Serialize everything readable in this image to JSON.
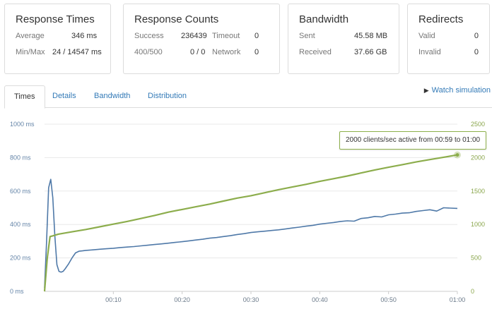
{
  "cards": {
    "response_times": {
      "title": "Response Times",
      "rows": [
        {
          "label": "Average",
          "value": "346 ms"
        },
        {
          "label": "Min/Max",
          "value": "24 / 14547 ms"
        }
      ]
    },
    "response_counts": {
      "title": "Response Counts",
      "rows": [
        {
          "label": "Success",
          "value": "236439",
          "label2": "Timeout",
          "value2": "0"
        },
        {
          "label": "400/500",
          "value": "0 / 0",
          "label2": "Network",
          "value2": "0"
        }
      ]
    },
    "bandwidth": {
      "title": "Bandwidth",
      "rows": [
        {
          "label": "Sent",
          "value": "45.58 MB"
        },
        {
          "label": "Received",
          "value": "37.66 GB"
        }
      ]
    },
    "redirects": {
      "title": "Redirects",
      "rows": [
        {
          "label": "Valid",
          "value": "0"
        },
        {
          "label": "Invalid",
          "value": "0"
        }
      ]
    }
  },
  "tabs": [
    {
      "label": "Times",
      "active": true
    },
    {
      "label": "Details",
      "active": false
    },
    {
      "label": "Bandwidth",
      "active": false
    },
    {
      "label": "Distribution",
      "active": false
    }
  ],
  "watch_label": "Watch simulation",
  "tooltip": "2000 clients/sec active from 00:59 to 01:00",
  "colors": {
    "response_time_line": "#4f79a8",
    "clients_line": "#8cad4c",
    "grid": "#e8e8e8",
    "link": "#337ab7"
  },
  "chart_data": {
    "type": "line",
    "x_unit": "seconds",
    "xlim": [
      0,
      60
    ],
    "x_ticks": [
      "00:10",
      "00:20",
      "00:30",
      "00:40",
      "00:50",
      "01:00"
    ],
    "y_left": {
      "ylim": [
        0,
        1000
      ],
      "ticks": [
        "0 ms",
        "200 ms",
        "400 ms",
        "600 ms",
        "800 ms",
        "1000 ms"
      ]
    },
    "y_right": {
      "ylim": [
        0,
        2500
      ],
      "ticks": [
        "0",
        "500",
        "1000",
        "1500",
        "2000",
        "2500"
      ]
    },
    "series": [
      {
        "axis": "left",
        "x": [
          0,
          0.3,
          0.6,
          0.9,
          1.2,
          1.5,
          1.8,
          2.1,
          2.4,
          2.7,
          3,
          3.5,
          4,
          4.5,
          5,
          5.5,
          6,
          7,
          8,
          9,
          10,
          11,
          12,
          13,
          14,
          15,
          16,
          17,
          18,
          19,
          20,
          21,
          22,
          23,
          24,
          25,
          26,
          27,
          28,
          29,
          30,
          31,
          32,
          33,
          34,
          35,
          36,
          37,
          38,
          39,
          40,
          41,
          42,
          43,
          44,
          45,
          46,
          47,
          48,
          49,
          50,
          51,
          52,
          53,
          54,
          55,
          56,
          57,
          58,
          59,
          60
        ],
        "values": [
          20,
          300,
          620,
          670,
          560,
          330,
          160,
          120,
          115,
          120,
          135,
          165,
          200,
          230,
          240,
          242,
          245,
          248,
          252,
          255,
          258,
          262,
          265,
          268,
          272,
          276,
          280,
          284,
          288,
          293,
          297,
          302,
          307,
          312,
          318,
          322,
          328,
          333,
          340,
          345,
          352,
          356,
          360,
          364,
          368,
          373,
          379,
          384,
          390,
          395,
          402,
          407,
          412,
          418,
          422,
          420,
          436,
          440,
          448,
          445,
          458,
          462,
          468,
          470,
          478,
          483,
          488,
          480,
          500,
          498,
          496
        ]
      },
      {
        "axis": "right",
        "x": [
          0,
          0.4,
          0.8,
          1.2,
          2,
          4,
          6,
          8,
          10,
          12,
          14,
          16,
          18,
          20,
          22,
          24,
          26,
          28,
          30,
          32,
          34,
          36,
          38,
          40,
          42,
          44,
          46,
          48,
          50,
          52,
          54,
          56,
          58,
          60
        ],
        "values": [
          0,
          500,
          820,
          830,
          855,
          890,
          925,
          965,
          1005,
          1045,
          1090,
          1135,
          1185,
          1225,
          1265,
          1305,
          1350,
          1395,
          1430,
          1475,
          1520,
          1560,
          1600,
          1645,
          1685,
          1725,
          1770,
          1815,
          1855,
          1895,
          1935,
          1970,
          2005,
          2040
        ]
      }
    ]
  }
}
